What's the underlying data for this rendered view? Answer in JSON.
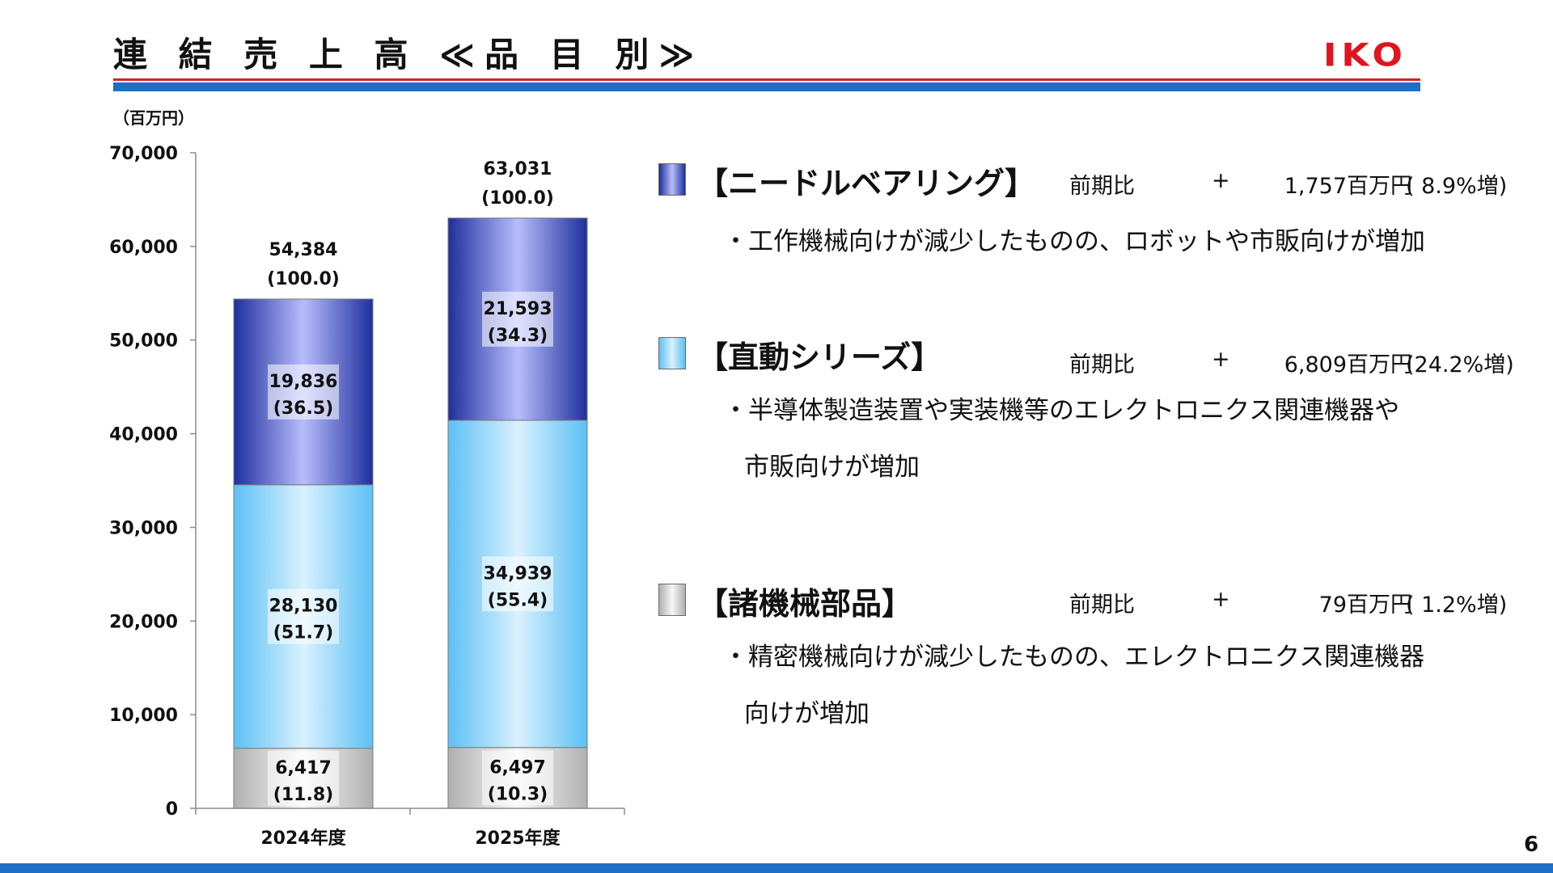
{
  "title": "連 結 売 上 高 ≪品 目 別≫",
  "logo_text": "IKO",
  "unit": "（百万円）",
  "page_number": "6",
  "chart_data": {
    "type": "bar",
    "stacked": true,
    "categories": [
      "2024年度",
      "2025年度"
    ],
    "ylim": [
      0,
      70000
    ],
    "yticks": [
      "0",
      "10,000",
      "20,000",
      "30,000",
      "40,000",
      "50,000",
      "60,000",
      "70,000"
    ],
    "series": [
      {
        "key": "parts",
        "values": [
          6417,
          6497
        ],
        "labels": [
          "6,417",
          "6,497"
        ],
        "shares": [
          "(11.8)",
          "(10.3)"
        ],
        "color": "#bdbdbd"
      },
      {
        "key": "linear",
        "values": [
          28130,
          34939
        ],
        "labels": [
          "28,130",
          "34,939"
        ],
        "shares": [
          "(51.7)",
          "(55.4)"
        ],
        "color": "#6ec6f5"
      },
      {
        "key": "needle",
        "values": [
          19836,
          21593
        ],
        "labels": [
          "19,836",
          "21,593"
        ],
        "shares": [
          "(36.5)",
          "(34.3)"
        ],
        "color": "#3344b0"
      }
    ],
    "totals": [
      "54,384",
      "63,031"
    ],
    "total_shares": [
      "(100.0)",
      "(100.0)"
    ]
  },
  "legend": [
    {
      "name": "【ニードルベアリング】",
      "cmp_label": "前期比",
      "sign": "+",
      "amount": "1,757百万円",
      "pct": "(  8.9%増)",
      "desc": [
        "・工作機械向けが減少したものの、ロボットや市販向けが増加"
      ]
    },
    {
      "name": "【直動シリーズ】",
      "cmp_label": "前期比",
      "sign": "+",
      "amount": "6,809百万円",
      "pct": "(24.2%増)",
      "desc": [
        "・半導体製造装置や実装機等のエレクトロニクス関連機器や",
        "市販向けが増加"
      ]
    },
    {
      "name": "【諸機械部品】",
      "cmp_label": "前期比",
      "sign": "+",
      "amount": "79百万円",
      "pct": "(  1.2%増)",
      "desc": [
        "・精密機械向けが減少したものの、エレクトロニクス関連機器",
        "向けが増加"
      ]
    }
  ]
}
